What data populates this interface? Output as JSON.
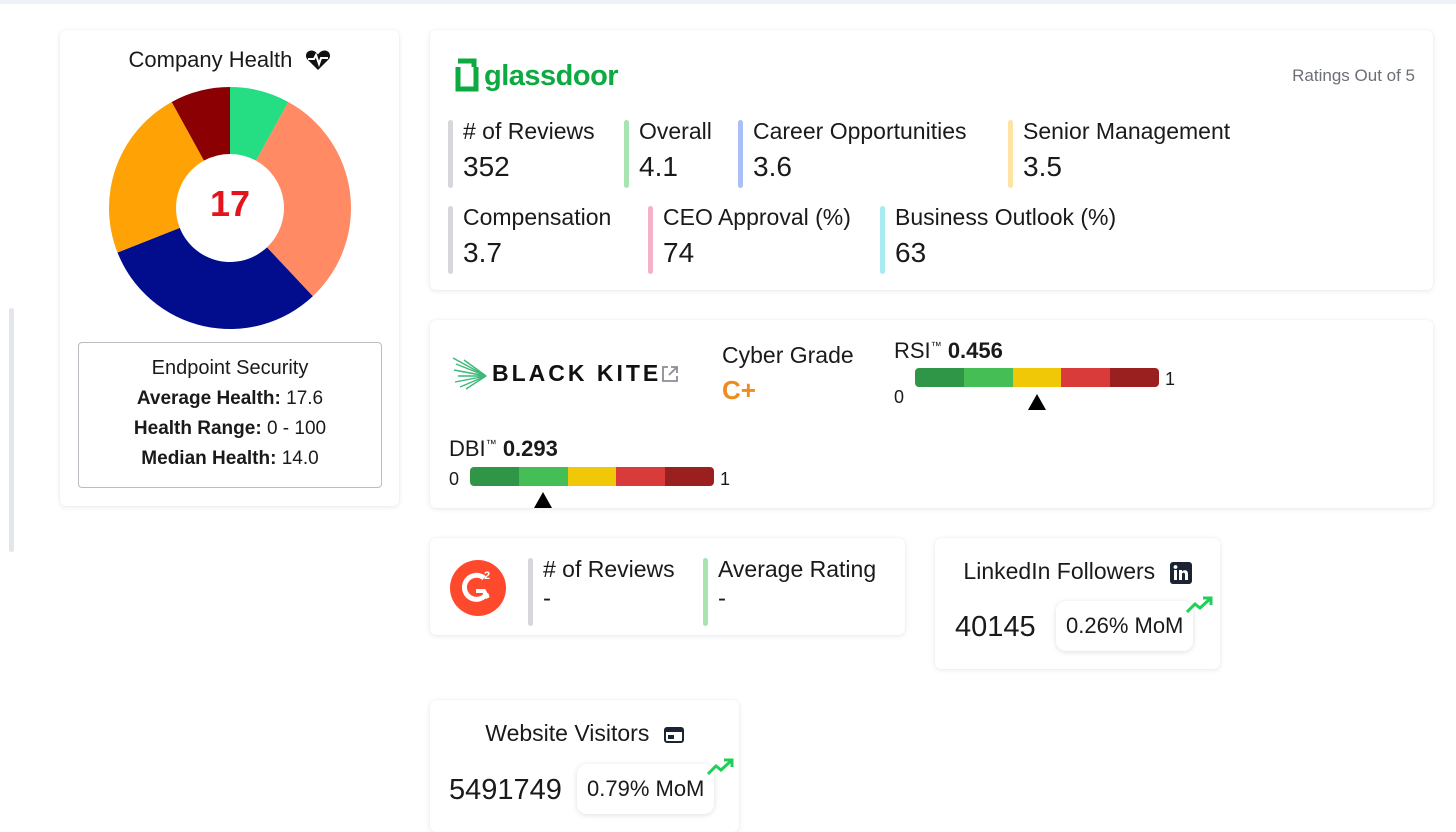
{
  "company_health": {
    "title": "Company Health",
    "heart_icon": "heart-pulse-icon",
    "score": "17",
    "donut_segments": [
      {
        "value": 8,
        "color": "#25dd82"
      },
      {
        "value": 30,
        "color": "#ff8a64"
      },
      {
        "value": 31,
        "color": "#020d8e"
      },
      {
        "value": 23,
        "color": "#ffa205"
      },
      {
        "value": 8,
        "color": "#8b0002"
      }
    ],
    "endpoint": {
      "title": "Endpoint Security",
      "average_label": "Average Health:",
      "average_value": "17.6",
      "range_label": "Health Range:",
      "range_value": "0 - 100",
      "median_label": "Median Health:",
      "median_value": "14.0"
    }
  },
  "glassdoor": {
    "logo_text": "glassdoor",
    "note": "Ratings Out of 5",
    "metrics": [
      {
        "label": "# of Reviews",
        "value": "352",
        "color": "#d5d7db"
      },
      {
        "label": "Overall",
        "value": "4.1",
        "color": "#a8e4b2"
      },
      {
        "label": "Career Opportunities",
        "value": "3.6",
        "color": "#a9bff5"
      },
      {
        "label": "Senior Management",
        "value": "3.5",
        "color": "#fde3a4"
      },
      {
        "label": "Compensation",
        "value": "3.7",
        "color": "#d5d7db"
      },
      {
        "label": "CEO Approval (%)",
        "value": "74",
        "color": "#f4b2c9"
      },
      {
        "label": "Business Outlook (%)",
        "value": "63",
        "color": "#a8ecf1"
      }
    ]
  },
  "blackkite": {
    "logo_text": "BLACK KITE",
    "cyber_label": "Cyber Grade",
    "cyber_grade": "C+",
    "rsi": {
      "name": "RSI",
      "tm": "™",
      "value": "0.456",
      "fraction": 0.456,
      "min": "0",
      "max": "1"
    },
    "dbi": {
      "name": "DBI",
      "tm": "™",
      "value": "0.293",
      "fraction": 0.293,
      "min": "0",
      "max": "1"
    },
    "gauge_colors": [
      "#2e9646",
      "#45bf55",
      "#f0c808",
      "#d93a3a",
      "#9a2020"
    ]
  },
  "g2": {
    "reviews_label": "# of Reviews",
    "reviews_value": "-",
    "rating_label": "Average Rating",
    "rating_value": "-",
    "reviews_bar_color": "#d5d7db",
    "rating_bar_color": "#a8e4b2"
  },
  "linkedin": {
    "title": "LinkedIn Followers",
    "value": "40145",
    "mom": "0.26% MoM"
  },
  "website": {
    "title": "Website Visitors",
    "value": "5491749",
    "mom": "0.79% MoM"
  },
  "colors": {
    "trend_up": "#1fcf58",
    "glassdoor": "#0caa41"
  }
}
